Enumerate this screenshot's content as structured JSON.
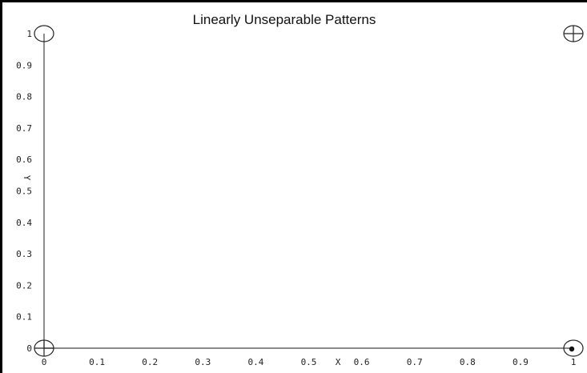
{
  "chart_data": {
    "type": "scatter",
    "title": "Linearly Unseparable Patterns",
    "xlabel": "X",
    "ylabel": "Y",
    "xlim": [
      0,
      1
    ],
    "ylim": [
      0,
      1
    ],
    "grid": false,
    "x_ticks": [
      "0",
      "0.1",
      "0.2",
      "0.3",
      "0.4",
      "0.5",
      "0.6",
      "0.7",
      "0.8",
      "0.9",
      "1"
    ],
    "y_ticks": [
      "0",
      "0.1",
      "0.2",
      "0.3",
      "0.4",
      "0.5",
      "0.6",
      "0.7",
      "0.8",
      "0.9",
      "1"
    ],
    "points": [
      {
        "x": 0,
        "y": 1,
        "marker": "circle"
      },
      {
        "x": 1,
        "y": 1,
        "marker": "circle-plus"
      },
      {
        "x": 0,
        "y": 0,
        "marker": "circle-plus"
      },
      {
        "x": 1,
        "y": 0,
        "marker": "circle-dot"
      }
    ]
  }
}
